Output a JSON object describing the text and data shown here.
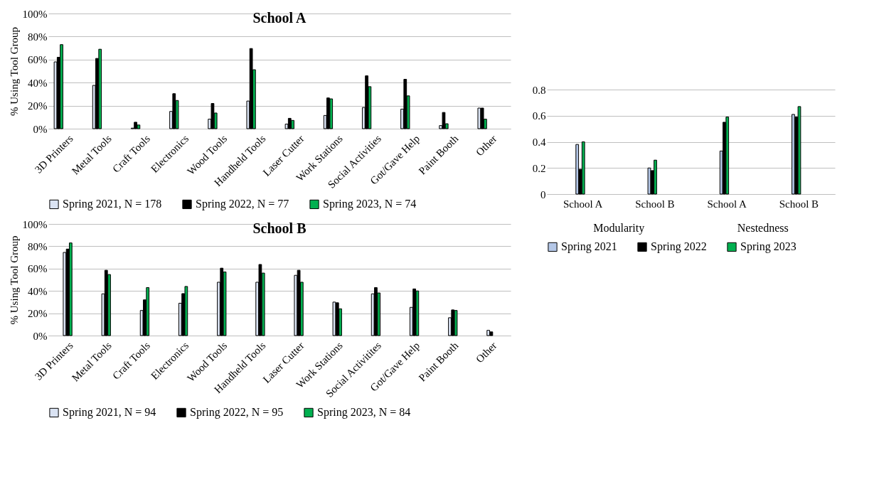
{
  "chart_data": [
    {
      "type": "bar",
      "title": "School A",
      "ylabel": "% Using Tool Group",
      "categories": [
        "3D Printers",
        "Metal Tools",
        "Craft Tools",
        "Electronics",
        "Wood Tools",
        "Handheld Tools",
        "Laser Cutter",
        "Work Stations",
        "Social Activities",
        "Got/Gave Help",
        "Paint Booth",
        "Other"
      ],
      "series": [
        {
          "name": "Spring 2021, N = 178",
          "color": "#dae3f3",
          "values": [
            58,
            37.6,
            0.5,
            15,
            8.3,
            24,
            4,
            11.5,
            18.4,
            17,
            2.7,
            17.9
          ]
        },
        {
          "name": "Spring 2022, N = 77",
          "color": "#000000",
          "values": [
            62,
            61,
            5.6,
            30.4,
            21.9,
            69.6,
            9,
            26.7,
            45.9,
            42.9,
            14.1,
            17.9
          ]
        },
        {
          "name": "Spring 2023, N = 74",
          "color": "#00b050",
          "values": [
            73,
            69,
            3.2,
            24.5,
            13.6,
            51.2,
            7.2,
            25.9,
            36.5,
            28.5,
            4.3,
            8.3
          ]
        }
      ],
      "ylim": [
        0,
        100
      ],
      "yticks": [
        {
          "value": 0,
          "label": "0%"
        },
        {
          "value": 20,
          "label": "20%"
        },
        {
          "value": 40,
          "label": "40%"
        },
        {
          "value": 60,
          "label": "60%"
        },
        {
          "value": 80,
          "label": "80%"
        },
        {
          "value": 100,
          "label": "100%"
        }
      ],
      "grid": "y",
      "legend": "bottom"
    },
    {
      "type": "bar",
      "title": "School B",
      "ylabel": "% Using Tool Group",
      "categories": [
        "3D Printers",
        "Metal Tools",
        "Craft Tools",
        "Electronics",
        "Wood Tools",
        "Handheld Tools",
        "Laser Cutter",
        "Work Stations",
        "Social Activitites",
        "Got/Gave Help",
        "Paint Booth",
        "Other"
      ],
      "series": [
        {
          "name": "Spring 2021, N = 94",
          "color": "#dae3f3",
          "values": [
            74.5,
            37.4,
            22.5,
            29,
            47.8,
            47.8,
            54,
            30,
            37.4,
            25.3,
            16,
            4.7
          ]
        },
        {
          "name": "Spring 2022, N = 95",
          "color": "#000000",
          "values": [
            77.5,
            58.5,
            32,
            37.6,
            60.4,
            63.7,
            58.5,
            29.4,
            43,
            41.8,
            23,
            3.3
          ]
        },
        {
          "name": "Spring 2023, N = 84",
          "color": "#00b050",
          "values": [
            83,
            54.7,
            43,
            44,
            57,
            56,
            47.8,
            24,
            38.2,
            40,
            22.5,
            null
          ]
        }
      ],
      "ylim": [
        0,
        100
      ],
      "yticks": [
        {
          "value": 0,
          "label": "0%"
        },
        {
          "value": 20,
          "label": "20%"
        },
        {
          "value": 40,
          "label": "40%"
        },
        {
          "value": 60,
          "label": "60%"
        },
        {
          "value": 80,
          "label": "80%"
        },
        {
          "value": 100,
          "label": "100%"
        }
      ],
      "grid": "y",
      "legend": "bottom"
    },
    {
      "type": "bar",
      "categories": [
        "School A",
        "School B",
        "School A",
        "School B"
      ],
      "annotations": [
        "Modularity",
        "Nestedness"
      ],
      "series": [
        {
          "name": "Spring 2021",
          "color": "#b4c7e7",
          "values": [
            0.38,
            0.2,
            0.33,
            0.61
          ]
        },
        {
          "name": "Spring 2022",
          "color": "#000000",
          "values": [
            0.19,
            0.18,
            0.55,
            0.59
          ]
        },
        {
          "name": "Spring 2023",
          "color": "#00b050",
          "values": [
            0.4,
            0.26,
            0.59,
            0.67
          ]
        }
      ],
      "ylim": [
        0,
        0.8
      ],
      "yticks": [
        0,
        0.2,
        0.4,
        0.6,
        0.8
      ],
      "grid": "y",
      "legend": "bottom"
    }
  ]
}
